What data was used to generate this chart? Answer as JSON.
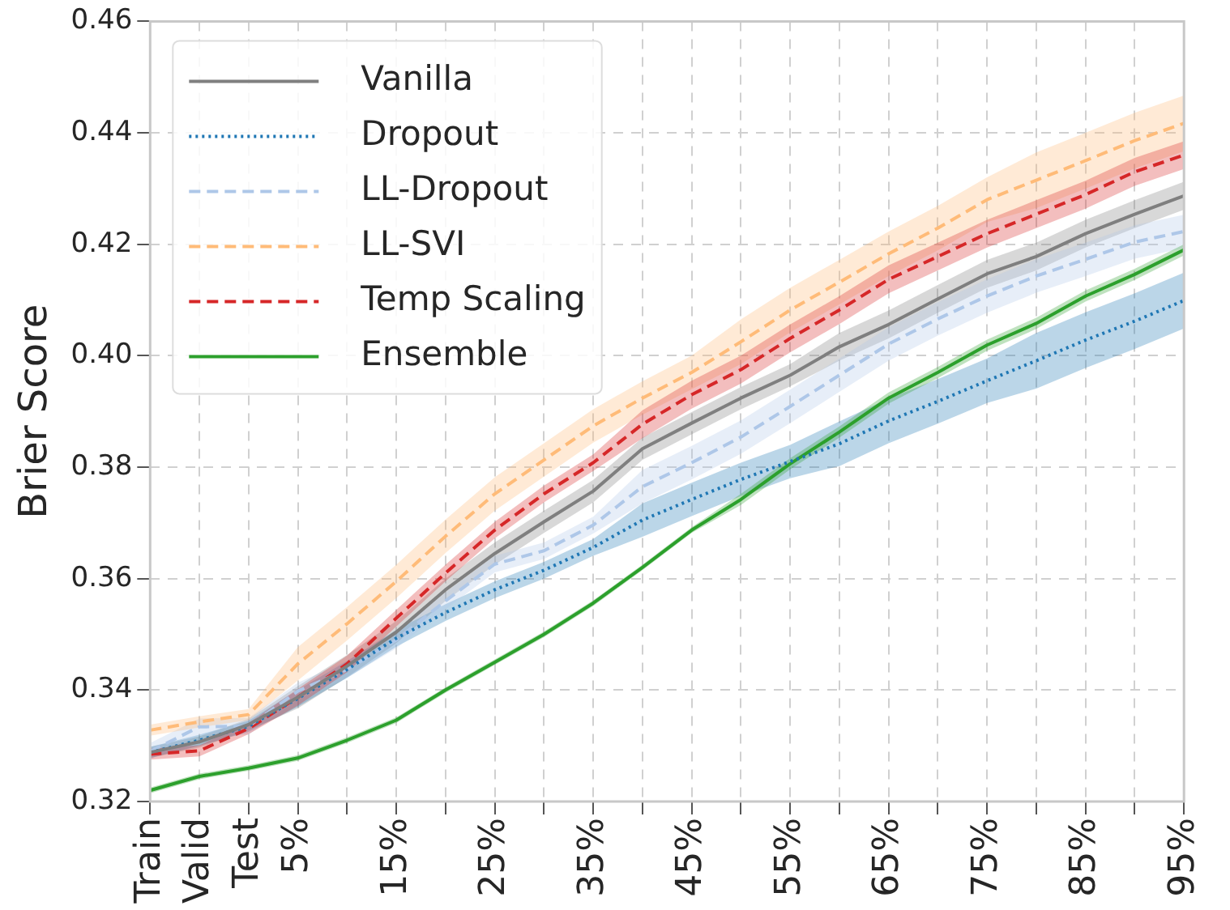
{
  "chart_data": {
    "type": "line",
    "ylabel": "Brier Score",
    "categories": [
      "Train",
      "Valid",
      "Test",
      "5%",
      null,
      "15%",
      null,
      "25%",
      null,
      "35%",
      null,
      "45%",
      null,
      "55%",
      null,
      "65%",
      null,
      "75%",
      null,
      "85%",
      null,
      "95%"
    ],
    "ylim": [
      0.32,
      0.46
    ],
    "yticks": [
      0.32,
      0.34,
      0.36,
      0.38,
      {
        "value": 0.4,
        "label": "0.40"
      },
      0.42,
      0.44,
      0.46
    ],
    "grid": true,
    "legend": "top left",
    "marker": "none",
    "series": [
      {
        "name": "Vanilla",
        "color": "#7f7f7f",
        "line_style": "solid",
        "values": [
          0.3288,
          0.3307,
          0.3338,
          0.3387,
          0.3443,
          0.3504,
          0.358,
          0.3645,
          0.3702,
          0.3757,
          0.3833,
          0.3879,
          0.3924,
          0.3965,
          0.4016,
          0.4056,
          0.4102,
          0.4147,
          0.4178,
          0.4219,
          0.4254,
          0.4287
        ],
        "lower": [
          0.3278,
          0.3297,
          0.3328,
          0.3367,
          0.3423,
          0.3484,
          0.356,
          0.3625,
          0.3682,
          0.3737,
          0.3813,
          0.3859,
          0.3904,
          0.3945,
          0.3991,
          0.4031,
          0.4077,
          0.4122,
          0.4153,
          0.4194,
          0.4229,
          0.4262
        ],
        "upper": [
          0.3298,
          0.3317,
          0.3348,
          0.3407,
          0.3463,
          0.3524,
          0.36,
          0.3665,
          0.3722,
          0.3777,
          0.3853,
          0.3899,
          0.3944,
          0.3985,
          0.4041,
          0.4081,
          0.4127,
          0.4172,
          0.4203,
          0.4244,
          0.4279,
          0.4312
        ]
      },
      {
        "name": "Dropout",
        "color": "#1f77b4",
        "line_style": "dotted",
        "values": [
          0.3288,
          0.331,
          0.3335,
          0.3385,
          0.3437,
          0.3493,
          0.3539,
          0.358,
          0.3615,
          0.3656,
          0.3705,
          0.3742,
          0.3778,
          0.381,
          0.3842,
          0.3883,
          0.3918,
          0.3955,
          0.3991,
          0.4028,
          0.4062,
          0.4099
        ],
        "lower": [
          0.3278,
          0.33,
          0.3325,
          0.337,
          0.3422,
          0.3478,
          0.3524,
          0.3565,
          0.36,
          0.3641,
          0.3675,
          0.3712,
          0.3748,
          0.378,
          0.3802,
          0.3843,
          0.3878,
          0.3915,
          0.3941,
          0.3978,
          0.4012,
          0.4049
        ],
        "upper": [
          0.3298,
          0.332,
          0.3345,
          0.34,
          0.3452,
          0.3508,
          0.3554,
          0.3595,
          0.363,
          0.3671,
          0.3735,
          0.3772,
          0.3808,
          0.384,
          0.3882,
          0.3923,
          0.3958,
          0.3995,
          0.4041,
          0.4078,
          0.4112,
          0.4149
        ]
      },
      {
        "name": "LL-Dropout",
        "color": "#aec7e8",
        "line_style": "dashed",
        "values": [
          0.329,
          0.3334,
          0.3335,
          0.3398,
          0.3437,
          0.349,
          0.356,
          0.3626,
          0.365,
          0.3696,
          0.3765,
          0.3808,
          0.3854,
          0.3909,
          0.3965,
          0.4021,
          0.4066,
          0.4107,
          0.4143,
          0.4173,
          0.4204,
          0.4223
        ],
        "lower": [
          0.3275,
          0.3319,
          0.332,
          0.3383,
          0.3422,
          0.3475,
          0.3545,
          0.3611,
          0.3635,
          0.3681,
          0.3735,
          0.3778,
          0.3824,
          0.3879,
          0.3935,
          0.3991,
          0.4036,
          0.4077,
          0.4113,
          0.4143,
          0.4174,
          0.4193
        ],
        "upper": [
          0.3305,
          0.3349,
          0.335,
          0.3413,
          0.3452,
          0.3505,
          0.3575,
          0.3641,
          0.3665,
          0.3711,
          0.3795,
          0.3838,
          0.3884,
          0.3939,
          0.3995,
          0.4051,
          0.4096,
          0.4137,
          0.4173,
          0.4203,
          0.4234,
          0.4253
        ]
      },
      {
        "name": "LL-SVI",
        "color": "#ffbb78",
        "line_style": "dashed",
        "values": [
          0.3328,
          0.3343,
          0.3356,
          0.3447,
          0.3519,
          0.3595,
          0.3676,
          0.3752,
          0.3813,
          0.3874,
          0.3924,
          0.397,
          0.4025,
          0.4082,
          0.4132,
          0.4183,
          0.4229,
          0.428,
          0.4315,
          0.435,
          0.4386,
          0.4417
        ],
        "lower": [
          0.3318,
          0.3333,
          0.3346,
          0.3417,
          0.3489,
          0.3565,
          0.3646,
          0.3722,
          0.3783,
          0.3844,
          0.3894,
          0.394,
          0.3985,
          0.4042,
          0.4092,
          0.4143,
          0.4189,
          0.424,
          0.4265,
          0.43,
          0.4336,
          0.4367
        ],
        "upper": [
          0.3338,
          0.3353,
          0.3366,
          0.3477,
          0.3549,
          0.3625,
          0.3706,
          0.3782,
          0.3843,
          0.3904,
          0.3954,
          0.4,
          0.4065,
          0.4122,
          0.4172,
          0.4223,
          0.4269,
          0.432,
          0.4365,
          0.44,
          0.4436,
          0.4467
        ]
      },
      {
        "name": "Temp Scaling",
        "color": "#d62728",
        "line_style": "dashed",
        "values": [
          0.3285,
          0.3291,
          0.3331,
          0.3387,
          0.3447,
          0.3529,
          0.361,
          0.3687,
          0.3752,
          0.3808,
          0.3877,
          0.393,
          0.3975,
          0.4031,
          0.4082,
          0.4137,
          0.4178,
          0.4219,
          0.4254,
          0.4289,
          0.433,
          0.436
        ],
        "lower": [
          0.3275,
          0.3281,
          0.3321,
          0.3372,
          0.3432,
          0.3514,
          0.3595,
          0.3672,
          0.3737,
          0.3793,
          0.3852,
          0.3905,
          0.395,
          0.4006,
          0.4057,
          0.4112,
          0.4153,
          0.4194,
          0.4229,
          0.4264,
          0.4305,
          0.4335
        ],
        "upper": [
          0.3295,
          0.3301,
          0.3341,
          0.3402,
          0.3462,
          0.3544,
          0.3625,
          0.3702,
          0.3767,
          0.3823,
          0.3902,
          0.3955,
          0.4,
          0.4056,
          0.4107,
          0.4162,
          0.4203,
          0.4244,
          0.4279,
          0.4314,
          0.4355,
          0.4385
        ]
      },
      {
        "name": "Ensemble",
        "color": "#2ca02c",
        "line_style": "solid",
        "values": [
          0.322,
          0.3245,
          0.326,
          0.3278,
          0.331,
          0.3346,
          0.34,
          0.345,
          0.35,
          0.3556,
          0.362,
          0.3687,
          0.3742,
          0.3806,
          0.3863,
          0.3924,
          0.397,
          0.4019,
          0.4058,
          0.4107,
          0.4146,
          0.419
        ],
        "lower": [
          0.3215,
          0.324,
          0.3255,
          0.3273,
          0.3305,
          0.3341,
          0.3395,
          0.3445,
          0.3495,
          0.3551,
          0.3615,
          0.3682,
          0.3732,
          0.3796,
          0.3853,
          0.3914,
          0.396,
          0.4009,
          0.4048,
          0.4097,
          0.4136,
          0.418
        ],
        "upper": [
          0.3225,
          0.325,
          0.3265,
          0.3283,
          0.3315,
          0.3351,
          0.3405,
          0.3455,
          0.3505,
          0.3561,
          0.3625,
          0.3692,
          0.3752,
          0.3816,
          0.3873,
          0.3934,
          0.398,
          0.4029,
          0.4068,
          0.4117,
          0.4156,
          0.42
        ]
      }
    ]
  }
}
